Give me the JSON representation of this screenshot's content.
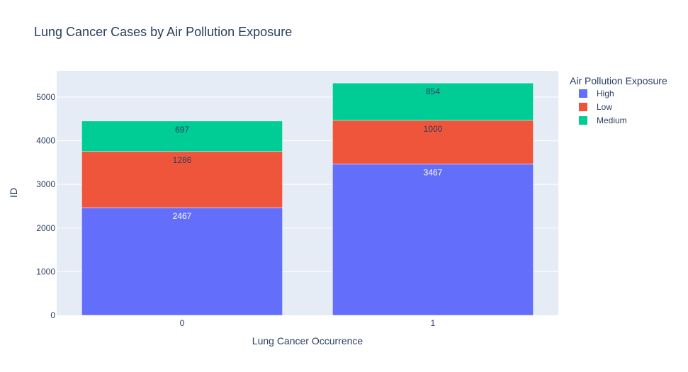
{
  "chart_data": {
    "type": "bar",
    "barmode": "stack",
    "title": "Lung Cancer Cases by Air Pollution Exposure",
    "xlabel": "Lung Cancer Occurrence",
    "ylabel": "ID",
    "categories": [
      "0",
      "1"
    ],
    "ylim": [
      0,
      5600
    ],
    "yticks": [
      0,
      1000,
      2000,
      3000,
      4000,
      5000
    ],
    "grid": true,
    "legend_title": "Air Pollution Exposure",
    "legend_position": "top-right",
    "series": [
      {
        "name": "High",
        "values": [
          2467,
          3467
        ],
        "labels": [
          "2467",
          "3467"
        ],
        "color": "#636efa",
        "label_color": "#ffffff"
      },
      {
        "name": "Low",
        "values": [
          1286,
          1000
        ],
        "labels": [
          "1286",
          "1000"
        ],
        "color": "#ef553b",
        "label_color": "#2a3f5f"
      },
      {
        "name": "Medium",
        "values": [
          697,
          854
        ],
        "labels": [
          "697",
          "854"
        ],
        "color": "#00cc96",
        "label_color": "#2a3f5f"
      }
    ],
    "colors": {
      "plot_bg": "#e5ecf6",
      "grid": "#ffffff",
      "text": "#2a3f5f"
    }
  }
}
